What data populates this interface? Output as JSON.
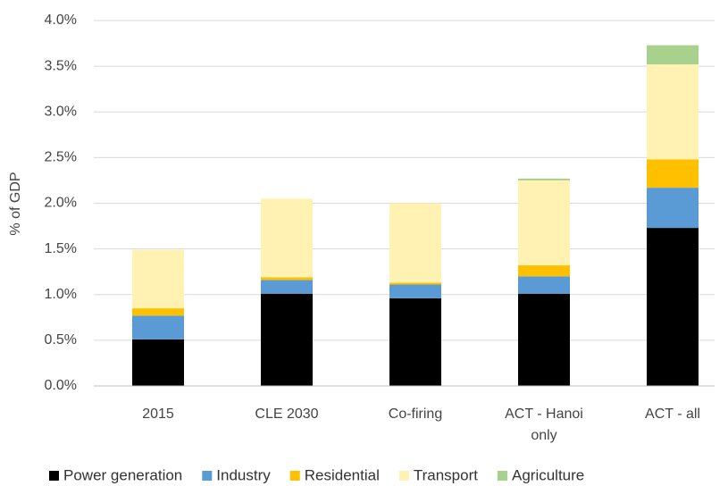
{
  "chart_data": {
    "type": "stacked_bar",
    "ylabel": "% of GDP",
    "categories": [
      "2015",
      "CLE 2030",
      "Co-firing",
      "ACT - Hanoi only",
      "ACT - all"
    ],
    "series": [
      {
        "name": "Power generation",
        "color": "#000000",
        "values": [
          0.51,
          1.01,
          0.96,
          1.01,
          1.73
        ]
      },
      {
        "name": "Industry",
        "color": "#5b9bd5",
        "values": [
          0.26,
          0.15,
          0.15,
          0.19,
          0.44
        ]
      },
      {
        "name": "Residential",
        "color": "#ffc000",
        "values": [
          0.08,
          0.03,
          0.02,
          0.12,
          0.31
        ]
      },
      {
        "name": "Transport",
        "color": "#fff2b3",
        "values": [
          0.64,
          0.86,
          0.87,
          0.93,
          1.04
        ]
      },
      {
        "name": "Agriculture",
        "color": "#a9d18e",
        "values": [
          0,
          0,
          0,
          0.02,
          0.21
        ]
      }
    ],
    "ylim": [
      0,
      4
    ],
    "yticks": [
      {
        "value": 0,
        "label": "0.0%"
      },
      {
        "value": 0.5,
        "label": "0.5%"
      },
      {
        "value": 1,
        "label": "1.0%"
      },
      {
        "value": 1.5,
        "label": "1.5%"
      },
      {
        "value": 2,
        "label": "2.0%"
      },
      {
        "value": 2.5,
        "label": "2.5%"
      },
      {
        "value": 3,
        "label": "3.0%"
      },
      {
        "value": 3.5,
        "label": "3.5%"
      },
      {
        "value": 4,
        "label": "4.0%"
      }
    ],
    "grid": true,
    "legend": "bottom"
  }
}
